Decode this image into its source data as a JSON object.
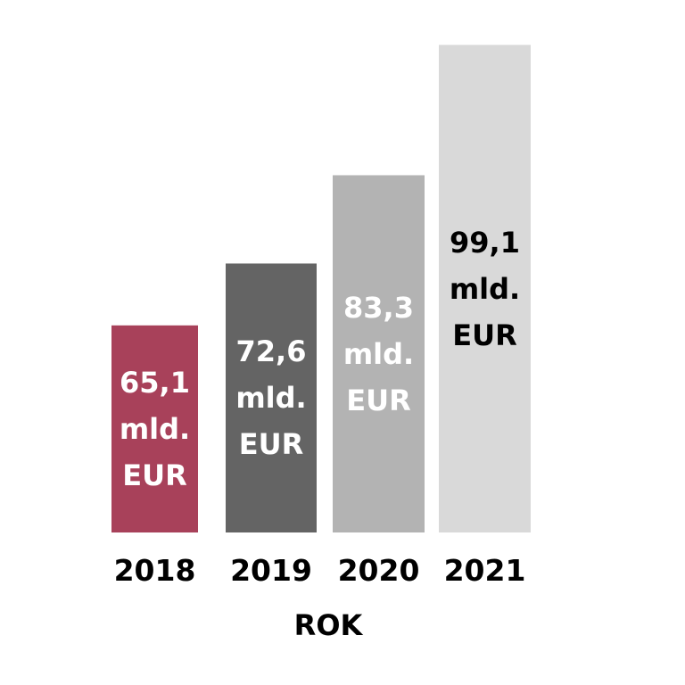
{
  "chart_data": {
    "type": "bar",
    "categories": [
      "2018",
      "2019",
      "2020",
      "2021"
    ],
    "values": [
      65.1,
      72.6,
      83.3,
      99.1
    ],
    "data_labels": [
      [
        "65,1",
        "mld.",
        "EUR"
      ],
      [
        "72,6",
        "mld.",
        "EUR"
      ],
      [
        "83,3",
        "mld.",
        "EUR"
      ],
      [
        "99,1",
        "mld.",
        "EUR"
      ]
    ],
    "bar_colors": [
      "#a8415a",
      "#646464",
      "#b3b3b3",
      "#d9d9d9"
    ],
    "label_colors": [
      "#ffffff",
      "#ffffff",
      "#ffffff",
      "#000000"
    ],
    "title": "",
    "xlabel": "ROK",
    "ylabel": "",
    "ylim": [
      40,
      100
    ],
    "grid": false,
    "legend": "none"
  }
}
